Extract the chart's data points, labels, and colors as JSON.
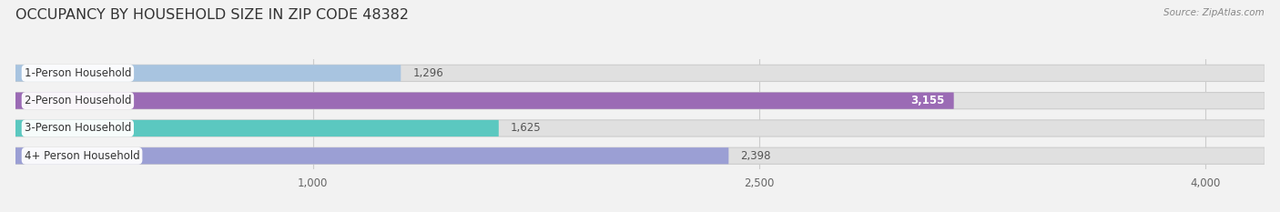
{
  "title": "OCCUPANCY BY HOUSEHOLD SIZE IN ZIP CODE 48382",
  "source": "Source: ZipAtlas.com",
  "categories": [
    "1-Person Household",
    "2-Person Household",
    "3-Person Household",
    "4+ Person Household"
  ],
  "values": [
    1296,
    3155,
    1625,
    2398
  ],
  "bar_colors": [
    "#a8c4e0",
    "#9b6bb5",
    "#5bc8c0",
    "#9b9fd4"
  ],
  "label_colors": [
    "#444444",
    "#ffffff",
    "#444444",
    "#444444"
  ],
  "background_color": "#f2f2f2",
  "bar_bg_color": "#e0e0e0",
  "xlim": [
    0,
    4200
  ],
  "xticks": [
    1000,
    2500,
    4000
  ],
  "xtick_labels": [
    "1,000",
    "2,500",
    "4,000"
  ],
  "title_fontsize": 11.5,
  "source_fontsize": 7.5,
  "bar_label_fontsize": 8.5,
  "value_label_fontsize": 8.5,
  "bar_height": 0.6,
  "figsize": [
    14.06,
    2.33
  ],
  "dpi": 100
}
